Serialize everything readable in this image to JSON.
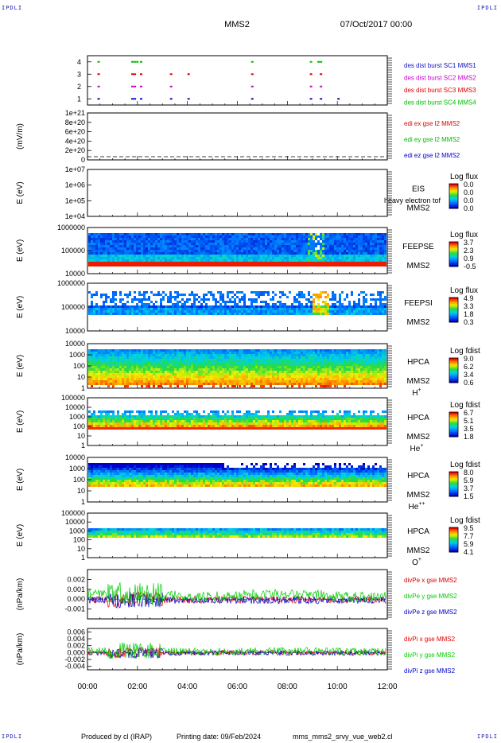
{
  "header": {
    "title": "MMS2",
    "date": "07/Oct/2017 00:00",
    "corner_label": "IPDLI"
  },
  "footer": {
    "produced_by": "Produced by cl (IRAP)",
    "printing_date": "Printing date: 09/Feb/2024",
    "filename": "mms_mms2_srvy_vue_web2.cl"
  },
  "colors": {
    "mms1": "#1010c0",
    "mms2": "#cc00cc",
    "mms3": "#dd0000",
    "mms4": "#00bb00",
    "x_component": "#dd0000",
    "y_component": "#00cc00",
    "z_component": "#0000cc"
  },
  "chart_data": [
    {
      "type": "scatter",
      "name": "burst",
      "ylim": [
        0.5,
        4.5
      ],
      "ytick_labels": [
        "1",
        "2",
        "3",
        "4"
      ],
      "legend": [
        {
          "label": "des dist burst SC1 MMS1",
          "color": "#1010c0"
        },
        {
          "label": "des dist burst SC2 MMS2",
          "color": "#cc00cc"
        },
        {
          "label": "des dist burst SC3 MMS3",
          "color": "#dd0000"
        },
        {
          "label": "des dist burst SC4 MMS4",
          "color": "#00bb00"
        }
      ],
      "series": [
        {
          "y": 4,
          "color": "#00bb00",
          "x": [
            0.4,
            1.75,
            1.85,
            1.95,
            2.1,
            6.55,
            8.9,
            9.2,
            9.3
          ]
        },
        {
          "y": 3,
          "color": "#dd0000",
          "x": [
            0.4,
            1.75,
            1.85,
            2.1,
            3.3,
            4.0,
            6.55,
            8.9,
            9.3
          ]
        },
        {
          "y": 2,
          "color": "#cc00cc",
          "x": [
            0.4,
            1.75,
            1.85,
            2.1,
            3.3,
            6.55,
            8.9,
            9.3
          ]
        },
        {
          "y": 1,
          "color": "#1010c0",
          "x": [
            0.4,
            1.75,
            1.85,
            2.1,
            3.3,
            4.0,
            6.55,
            8.9,
            9.3,
            10.0
          ]
        }
      ]
    },
    {
      "type": "line",
      "name": "edi",
      "ylabel": "(mV/m)",
      "ytick_labels": [
        "0",
        "2e+20",
        "4e+20",
        "6e+20",
        "8e+20",
        "1e+21"
      ],
      "legend": [
        {
          "label": "edi ex gse l2 MMS2",
          "color": "#dd0000"
        },
        {
          "label": "edi ey gse l2 MMS2",
          "color": "#00bb00"
        },
        {
          "label": "edi ez gse l2 MMS2",
          "color": "#0000cc"
        }
      ]
    },
    {
      "type": "heatmap",
      "name": "eis",
      "ylabel": "E (eV)",
      "ytick_labels": [
        "1e+04",
        "1e+05",
        "1e+06",
        "1e+07"
      ],
      "side_labels": [
        "EIS",
        "MMS2"
      ],
      "overlay_text": "heavy electron tof",
      "colorbar": {
        "title": "Log flux",
        "ticks": [
          "0.0",
          "0.0",
          "0.0",
          "0.0"
        ]
      }
    },
    {
      "type": "heatmap",
      "name": "feepse",
      "ylabel": "E (eV)",
      "ytick_labels": [
        "10000",
        "100000",
        "1000000"
      ],
      "side_labels": [
        "FEEPSE",
        "MMS2"
      ],
      "colorbar": {
        "title": "Log flux",
        "ticks": [
          "3.7",
          "2.3",
          "0.9",
          "-0.5"
        ]
      }
    },
    {
      "type": "heatmap",
      "name": "feepsi",
      "ylabel": "E (eV)",
      "ytick_labels": [
        "10000",
        "100000",
        "1000000"
      ],
      "side_labels": [
        "FEEPSI",
        "MMS2"
      ],
      "colorbar": {
        "title": "Log flux",
        "ticks": [
          "4.9",
          "3.3",
          "1.8",
          "0.3"
        ]
      }
    },
    {
      "type": "heatmap",
      "name": "hpca-h",
      "ylabel": "E (eV)",
      "ytick_labels": [
        "1",
        "10",
        "100",
        "1000",
        "10000"
      ],
      "side_labels": [
        "HPCA",
        "MMS2"
      ],
      "species": "H",
      "species_charge": "+",
      "colorbar": {
        "title": "Log fdist",
        "ticks": [
          "9.0",
          "6.2",
          "3.4",
          "0.6"
        ]
      }
    },
    {
      "type": "heatmap",
      "name": "hpca-he",
      "ylabel": "E (eV)",
      "ytick_labels": [
        "1",
        "10",
        "100",
        "1000",
        "10000",
        "100000"
      ],
      "side_labels": [
        "HPCA",
        "MMS2"
      ],
      "species": "He",
      "species_charge": "+",
      "colorbar": {
        "title": "Log fdist",
        "ticks": [
          "6.7",
          "5.1",
          "3.5",
          "1.8"
        ]
      }
    },
    {
      "type": "heatmap",
      "name": "hpca-he2",
      "ylabel": "E (eV)",
      "ytick_labels": [
        "1",
        "10",
        "100",
        "1000",
        "10000"
      ],
      "side_labels": [
        "HPCA",
        "MMS2"
      ],
      "species": "He",
      "species_charge": "++",
      "colorbar": {
        "title": "Log fdist",
        "ticks": [
          "8.0",
          "5.9",
          "3.7",
          "1.5"
        ]
      }
    },
    {
      "type": "heatmap",
      "name": "hpca-o",
      "ylabel": "E (eV)",
      "ytick_labels": [
        "1",
        "10",
        "100",
        "1000",
        "10000",
        "100000"
      ],
      "side_labels": [
        "HPCA",
        "MMS2"
      ],
      "species": "O",
      "species_charge": "+",
      "colorbar": {
        "title": "Log fdist",
        "ticks": [
          "9.5",
          "7.7",
          "5.9",
          "4.1"
        ]
      }
    },
    {
      "type": "line",
      "name": "divpe",
      "ylabel": "(nPa/km)",
      "ylim": [
        -0.002,
        0.003
      ],
      "ytick_values": [
        -0.001,
        0.0,
        0.001,
        0.002
      ],
      "ytick_labels": [
        "-0.001",
        "0.000",
        "0.001",
        "0.002"
      ],
      "legend": [
        {
          "label": "divPe x gse MMS2",
          "color": "#dd0000"
        },
        {
          "label": "divPe y gse MMS2",
          "color": "#00cc00"
        },
        {
          "label": "divPe z gse MMS2",
          "color": "#0000cc"
        }
      ]
    },
    {
      "type": "line",
      "name": "divpi",
      "ylabel": "(nPa/km)",
      "ylim": [
        -0.005,
        0.007
      ],
      "ytick_values": [
        -0.004,
        -0.002,
        0.0,
        0.002,
        0.004,
        0.006
      ],
      "ytick_labels": [
        "-0.004",
        "-0.002",
        "0.000",
        "0.002",
        "0.004",
        "0.006"
      ],
      "legend": [
        {
          "label": "divPi x gse MMS2",
          "color": "#dd0000"
        },
        {
          "label": "divPi y gse MMS2",
          "color": "#00cc00"
        },
        {
          "label": "divPi z gse MMS2",
          "color": "#0000cc"
        }
      ]
    }
  ],
  "xaxis": {
    "range_hours": [
      0,
      12
    ],
    "tick_labels": [
      "00:00",
      "02:00",
      "04:00",
      "06:00",
      "08:00",
      "10:00",
      "12:00"
    ]
  }
}
